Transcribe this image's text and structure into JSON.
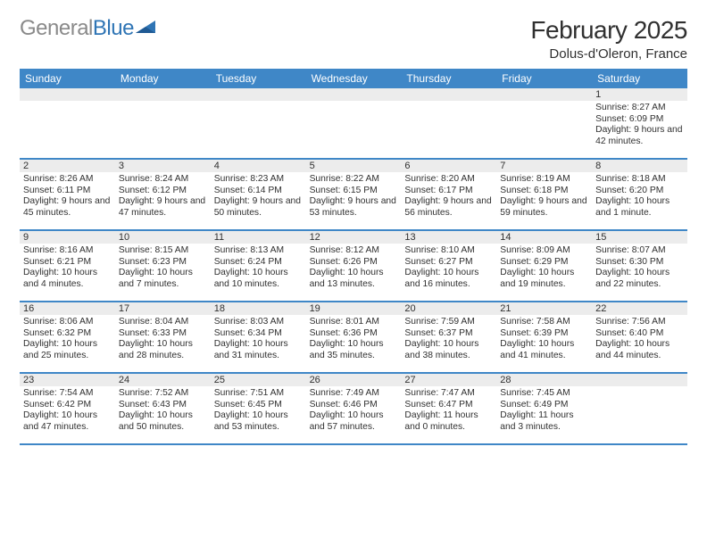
{
  "logo": {
    "text_gray": "General",
    "text_blue": "Blue"
  },
  "title": "February 2025",
  "location": "Dolus-d'Oleron, France",
  "colors": {
    "header_bg": "#3f87c7",
    "header_text": "#ffffff",
    "stripe": "#ececec",
    "border": "#3f87c7",
    "text": "#303030",
    "logo_gray": "#8a8a8a",
    "logo_blue": "#2f75b5"
  },
  "day_names": [
    "Sunday",
    "Monday",
    "Tuesday",
    "Wednesday",
    "Thursday",
    "Friday",
    "Saturday"
  ],
  "weeks": [
    [
      {
        "day": "",
        "empty": true
      },
      {
        "day": "",
        "empty": true
      },
      {
        "day": "",
        "empty": true
      },
      {
        "day": "",
        "empty": true
      },
      {
        "day": "",
        "empty": true
      },
      {
        "day": "",
        "empty": true
      },
      {
        "day": "1",
        "sunrise": "Sunrise: 8:27 AM",
        "sunset": "Sunset: 6:09 PM",
        "daylight": "Daylight: 9 hours and 42 minutes."
      }
    ],
    [
      {
        "day": "2",
        "sunrise": "Sunrise: 8:26 AM",
        "sunset": "Sunset: 6:11 PM",
        "daylight": "Daylight: 9 hours and 45 minutes."
      },
      {
        "day": "3",
        "sunrise": "Sunrise: 8:24 AM",
        "sunset": "Sunset: 6:12 PM",
        "daylight": "Daylight: 9 hours and 47 minutes."
      },
      {
        "day": "4",
        "sunrise": "Sunrise: 8:23 AM",
        "sunset": "Sunset: 6:14 PM",
        "daylight": "Daylight: 9 hours and 50 minutes."
      },
      {
        "day": "5",
        "sunrise": "Sunrise: 8:22 AM",
        "sunset": "Sunset: 6:15 PM",
        "daylight": "Daylight: 9 hours and 53 minutes."
      },
      {
        "day": "6",
        "sunrise": "Sunrise: 8:20 AM",
        "sunset": "Sunset: 6:17 PM",
        "daylight": "Daylight: 9 hours and 56 minutes."
      },
      {
        "day": "7",
        "sunrise": "Sunrise: 8:19 AM",
        "sunset": "Sunset: 6:18 PM",
        "daylight": "Daylight: 9 hours and 59 minutes."
      },
      {
        "day": "8",
        "sunrise": "Sunrise: 8:18 AM",
        "sunset": "Sunset: 6:20 PM",
        "daylight": "Daylight: 10 hours and 1 minute."
      }
    ],
    [
      {
        "day": "9",
        "sunrise": "Sunrise: 8:16 AM",
        "sunset": "Sunset: 6:21 PM",
        "daylight": "Daylight: 10 hours and 4 minutes."
      },
      {
        "day": "10",
        "sunrise": "Sunrise: 8:15 AM",
        "sunset": "Sunset: 6:23 PM",
        "daylight": "Daylight: 10 hours and 7 minutes."
      },
      {
        "day": "11",
        "sunrise": "Sunrise: 8:13 AM",
        "sunset": "Sunset: 6:24 PM",
        "daylight": "Daylight: 10 hours and 10 minutes."
      },
      {
        "day": "12",
        "sunrise": "Sunrise: 8:12 AM",
        "sunset": "Sunset: 6:26 PM",
        "daylight": "Daylight: 10 hours and 13 minutes."
      },
      {
        "day": "13",
        "sunrise": "Sunrise: 8:10 AM",
        "sunset": "Sunset: 6:27 PM",
        "daylight": "Daylight: 10 hours and 16 minutes."
      },
      {
        "day": "14",
        "sunrise": "Sunrise: 8:09 AM",
        "sunset": "Sunset: 6:29 PM",
        "daylight": "Daylight: 10 hours and 19 minutes."
      },
      {
        "day": "15",
        "sunrise": "Sunrise: 8:07 AM",
        "sunset": "Sunset: 6:30 PM",
        "daylight": "Daylight: 10 hours and 22 minutes."
      }
    ],
    [
      {
        "day": "16",
        "sunrise": "Sunrise: 8:06 AM",
        "sunset": "Sunset: 6:32 PM",
        "daylight": "Daylight: 10 hours and 25 minutes."
      },
      {
        "day": "17",
        "sunrise": "Sunrise: 8:04 AM",
        "sunset": "Sunset: 6:33 PM",
        "daylight": "Daylight: 10 hours and 28 minutes."
      },
      {
        "day": "18",
        "sunrise": "Sunrise: 8:03 AM",
        "sunset": "Sunset: 6:34 PM",
        "daylight": "Daylight: 10 hours and 31 minutes."
      },
      {
        "day": "19",
        "sunrise": "Sunrise: 8:01 AM",
        "sunset": "Sunset: 6:36 PM",
        "daylight": "Daylight: 10 hours and 35 minutes."
      },
      {
        "day": "20",
        "sunrise": "Sunrise: 7:59 AM",
        "sunset": "Sunset: 6:37 PM",
        "daylight": "Daylight: 10 hours and 38 minutes."
      },
      {
        "day": "21",
        "sunrise": "Sunrise: 7:58 AM",
        "sunset": "Sunset: 6:39 PM",
        "daylight": "Daylight: 10 hours and 41 minutes."
      },
      {
        "day": "22",
        "sunrise": "Sunrise: 7:56 AM",
        "sunset": "Sunset: 6:40 PM",
        "daylight": "Daylight: 10 hours and 44 minutes."
      }
    ],
    [
      {
        "day": "23",
        "sunrise": "Sunrise: 7:54 AM",
        "sunset": "Sunset: 6:42 PM",
        "daylight": "Daylight: 10 hours and 47 minutes."
      },
      {
        "day": "24",
        "sunrise": "Sunrise: 7:52 AM",
        "sunset": "Sunset: 6:43 PM",
        "daylight": "Daylight: 10 hours and 50 minutes."
      },
      {
        "day": "25",
        "sunrise": "Sunrise: 7:51 AM",
        "sunset": "Sunset: 6:45 PM",
        "daylight": "Daylight: 10 hours and 53 minutes."
      },
      {
        "day": "26",
        "sunrise": "Sunrise: 7:49 AM",
        "sunset": "Sunset: 6:46 PM",
        "daylight": "Daylight: 10 hours and 57 minutes."
      },
      {
        "day": "27",
        "sunrise": "Sunrise: 7:47 AM",
        "sunset": "Sunset: 6:47 PM",
        "daylight": "Daylight: 11 hours and 0 minutes."
      },
      {
        "day": "28",
        "sunrise": "Sunrise: 7:45 AM",
        "sunset": "Sunset: 6:49 PM",
        "daylight": "Daylight: 11 hours and 3 minutes."
      },
      {
        "day": "",
        "empty": true
      }
    ]
  ]
}
